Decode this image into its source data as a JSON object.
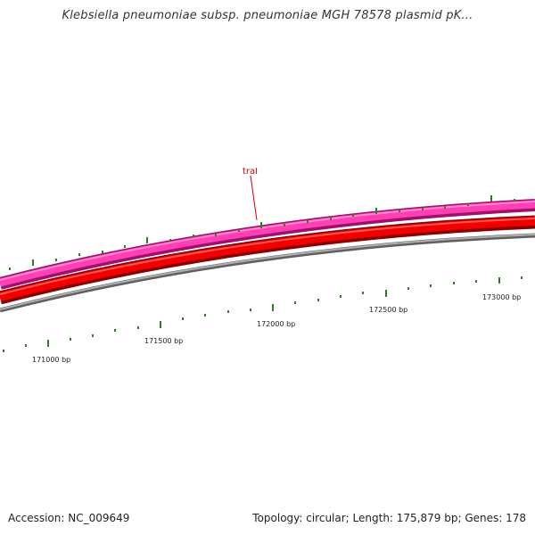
{
  "title": "Klebsiella pneumoniae subsp. pneumoniae MGH 78578 plasmid pK...",
  "footer": {
    "accession": "Accession: NC_009649",
    "stats": "Topology: circular; Length: 175,879 bp; Genes: 178"
  },
  "map": {
    "position_labels": [
      "171000 bp",
      "171500 bp",
      "172000 bp",
      "172500 bp",
      "173000 bp"
    ],
    "gene_label": "traI",
    "colors": {
      "outer_feature_track": "#e8199a",
      "cds_track": "#e00000",
      "backbone": "#808080",
      "tick_marks": "#2e7d22",
      "gene_label": "#d40000"
    }
  }
}
